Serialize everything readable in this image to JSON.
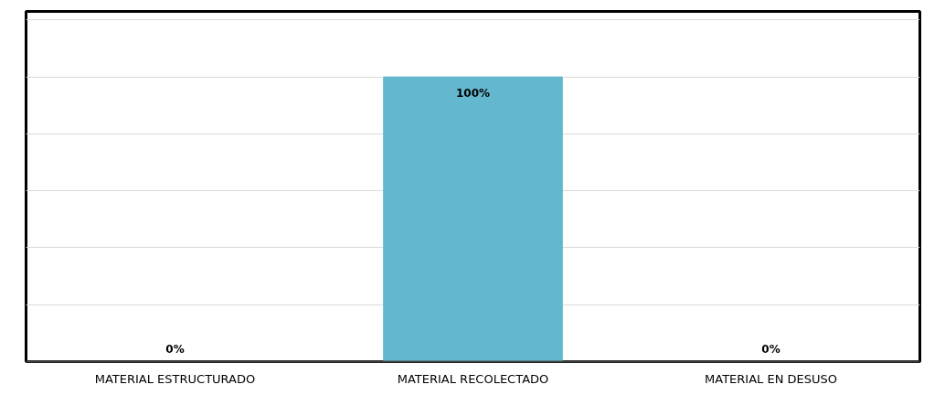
{
  "chart_data": {
    "type": "bar",
    "categories": [
      "MATERIAL ESTRUCTURADO",
      "MATERIAL RECOLECTADO",
      "MATERIAL EN DESUSO"
    ],
    "values": [
      0,
      100,
      0
    ],
    "value_labels": [
      "0%",
      "100%",
      "0%"
    ],
    "color": "#63b7cf",
    "ylim": [
      0,
      123
    ],
    "yticks": [
      {
        "value": 0,
        "label": null
      },
      {
        "value": 20,
        "label": null
      },
      {
        "value": 40,
        "label": null
      },
      {
        "value": 60,
        "label": null
      },
      {
        "value": 80,
        "label": null
      },
      {
        "value": 100,
        "label": null
      },
      {
        "value": 120,
        "label": null
      }
    ],
    "grid": "y",
    "tick_labels": "x"
  }
}
